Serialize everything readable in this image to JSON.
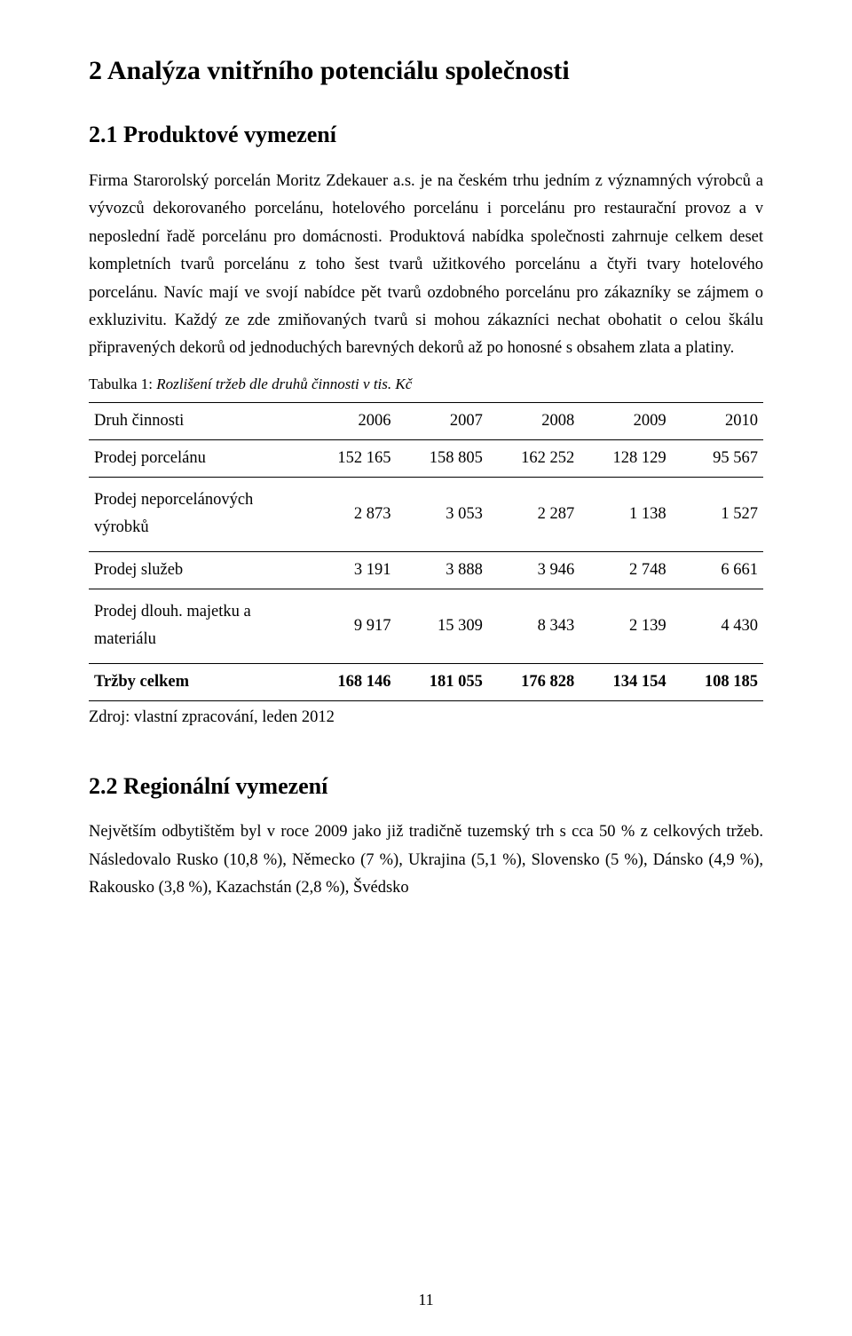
{
  "section2": {
    "title": "2  Analýza vnitřního potenciálu společnosti",
    "sub1": {
      "title": "2.1 Produktové vymezení",
      "para1": "Firma Starorolský porcelán Moritz Zdekauer a.s. je na českém trhu jedním z významných výrobců a vývozců dekorovaného porcelánu, hotelového porcelánu i porcelánu pro restaurační provoz a v neposlední řadě porcelánu pro domácnosti. Produktová nabídka společnosti zahrnuje celkem deset kompletních tvarů porcelánu z toho šest tvarů užitkového porcelánu a čtyři tvary hotelového porcelánu. Navíc mají ve svojí nabídce pět tvarů ozdobného porcelánu pro zákazníky se zájmem o exkluzivitu. Každý ze zde zmiňovaných tvarů si mohou zákazníci nechat obohatit o celou škálu připravených dekorů od jednoduchých barevných dekorů až po honosné s obsahem zlata a platiny.",
      "tableCaptionLabel": "Tabulka 1: ",
      "tableCaptionItalic": "Rozlišení tržeb dle druhů činnosti v tis. Kč",
      "table": {
        "headers": [
          "Druh činnosti",
          "2006",
          "2007",
          "2008",
          "2009",
          "2010"
        ],
        "rows": [
          {
            "label": "Prodej porcelánu",
            "cells": [
              "152 165",
              "158 805",
              "162 252",
              "128 129",
              "95 567"
            ],
            "tall": false
          },
          {
            "label": "Prodej neporcelánových výrobků",
            "cells": [
              "2 873",
              "3 053",
              "2 287",
              "1 138",
              "1 527"
            ],
            "tall": true
          },
          {
            "label": "Prodej služeb",
            "cells": [
              "3 191",
              "3 888",
              "3 946",
              "2 748",
              "6 661"
            ],
            "tall": false
          },
          {
            "label": "Prodej dlouh. majetku a materiálu",
            "cells": [
              "9 917",
              "15 309",
              "8 343",
              "2 139",
              "4 430"
            ],
            "tall": true
          }
        ],
        "total": {
          "label": "Tržby celkem",
          "cells": [
            "168 146",
            "181 055",
            "176 828",
            "134 154",
            "108 185"
          ]
        }
      },
      "source": "Zdroj: vlastní zpracování, leden 2012"
    },
    "sub2": {
      "title": "2.2 Regionální vymezení",
      "para1": "Největším odbytištěm byl v roce 2009 jako již tradičně tuzemský trh s cca 50 % z celkových tržeb. Následovalo Rusko (10,8 %), Německo (7 %), Ukrajina (5,1 %), Slovensko (5 %), Dánsko (4,9 %), Rakousko (3,8 %), Kazachstán (2,8 %), Švédsko"
    }
  },
  "pageNumber": "11"
}
